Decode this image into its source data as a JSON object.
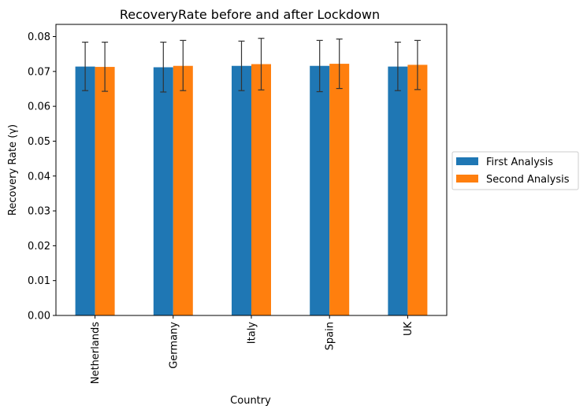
{
  "chart_data": {
    "type": "bar",
    "title": "RecoveryRate before and after Lockdown",
    "xlabel": "Country",
    "ylabel": "Recovery Rate (γ)",
    "categories": [
      "Netherlands",
      "Germany",
      "Italy",
      "Spain",
      "UK"
    ],
    "series": [
      {
        "name": "First Analysis",
        "color": "#1f77b4",
        "values": [
          0.0714,
          0.0712,
          0.0716,
          0.0716,
          0.0714
        ],
        "error_low": [
          0.0645,
          0.0641,
          0.0645,
          0.0642,
          0.0645
        ],
        "error_high": [
          0.0784,
          0.0784,
          0.0787,
          0.0789,
          0.0784
        ]
      },
      {
        "name": "Second Analysis",
        "color": "#ff7f0e",
        "values": [
          0.0713,
          0.0716,
          0.0721,
          0.0722,
          0.0719
        ],
        "error_low": [
          0.0643,
          0.0645,
          0.0647,
          0.0651,
          0.0648
        ],
        "error_high": [
          0.0784,
          0.0789,
          0.0795,
          0.0793,
          0.0789
        ]
      }
    ],
    "ylim": [
      0,
      0.0835
    ],
    "yticks": [
      "0.00",
      "0.01",
      "0.02",
      "0.03",
      "0.04",
      "0.05",
      "0.06",
      "0.07",
      "0.08"
    ],
    "grid": false,
    "legend_position": "right, outside plot"
  }
}
